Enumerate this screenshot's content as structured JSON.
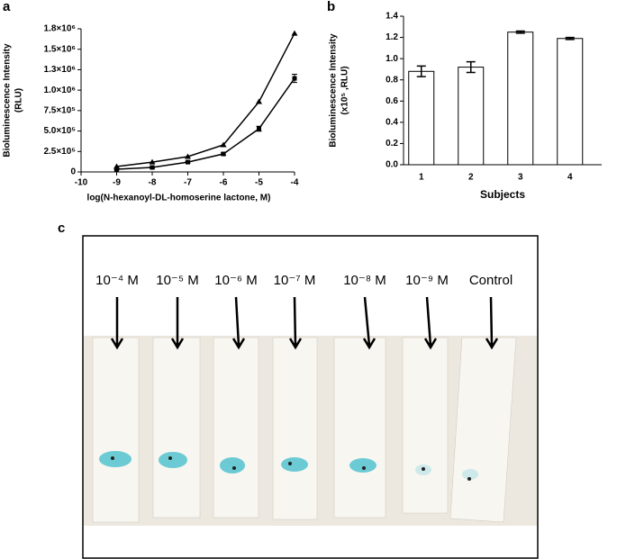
{
  "panel_labels": [
    "a",
    "b",
    "c"
  ],
  "chart_data": [
    {
      "type": "line",
      "y_label": [
        "Bioluminescence Intensity",
        "(RLU)"
      ],
      "x_label": "log(N-hexanoyl-DL-homoserine lactone, M)",
      "xlim": [
        -10,
        -4
      ],
      "xticks": [
        -10,
        -9,
        -8,
        -7,
        -6,
        -5,
        -4
      ],
      "ylim": [
        0,
        1750000
      ],
      "yticks": [
        0,
        {
          "value": 250000,
          "label": "2.5×10⁵"
        },
        {
          "value": 500000,
          "label": "5.0×10⁵"
        },
        {
          "value": 750000,
          "label": "7.5×10⁵"
        },
        {
          "value": 1000000,
          "label": "1.0×10⁶"
        },
        {
          "value": 1250000,
          "label": "1.3×10⁶"
        },
        {
          "value": 1500000,
          "label": "1.5×10⁶"
        },
        {
          "value": 1750000,
          "label": "1.8×10⁶"
        }
      ],
      "x": [
        -9,
        -8,
        -7,
        -6,
        -5,
        -4
      ],
      "series": [
        {
          "marker": "triangle",
          "color": "#000000",
          "values": [
            66000,
            120000,
            187000,
            330000,
            858000,
            1694000
          ]
        },
        {
          "marker": "square",
          "color": "#000000",
          "values": [
            33000,
            55000,
            120000,
            220000,
            528000,
            1144000
          ],
          "errors": [
            10000,
            10000,
            10000,
            15000,
            30000,
            50000
          ]
        }
      ]
    },
    {
      "type": "bar",
      "y_label": [
        "Bioluminescence Intensity",
        "(x10⁵ ,RLU)"
      ],
      "x_label": "Subjects",
      "categories": [
        "1",
        "2",
        "3",
        "4"
      ],
      "values": [
        0.88,
        0.92,
        1.25,
        1.19
      ],
      "errors": [
        0.05,
        0.05,
        0.01,
        0.01
      ],
      "color": "#ffffff",
      "ylim": [
        0,
        1.4
      ],
      "yticks": [
        {
          "value": 0,
          "label": "0.0"
        },
        0.2,
        0.4,
        0.6,
        0.8,
        {
          "value": 1,
          "label": "1.0"
        },
        1.2,
        1.4
      ]
    }
  ],
  "photo": {
    "labels": [
      "10⁻⁴ M",
      "10⁻⁵ M",
      "10⁻⁶ M",
      "10⁻⁷ M",
      "10⁻⁸ M",
      "10⁻⁹ M",
      "Control"
    ]
  }
}
